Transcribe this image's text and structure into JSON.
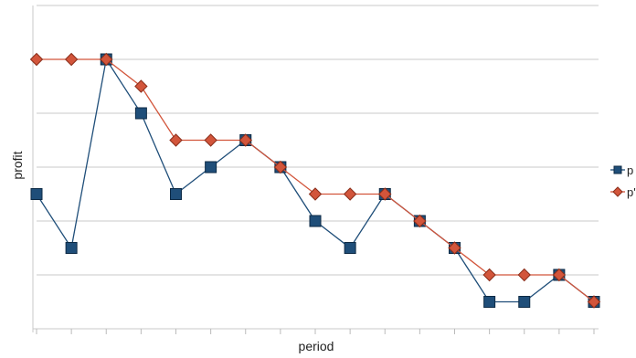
{
  "chart_data": {
    "type": "line",
    "title": "",
    "xlabel": "period",
    "ylabel": "profit",
    "x": [
      1,
      2,
      3,
      4,
      5,
      6,
      7,
      8,
      9,
      10,
      11,
      12,
      13,
      14,
      15,
      16,
      17
    ],
    "ylim": [
      0,
      6
    ],
    "grid": true,
    "legend_position": "right",
    "series": [
      {
        "name": "p",
        "color": "#1f4e79",
        "marker": "square",
        "values": [
          2.5,
          1.5,
          5.0,
          4.0,
          2.5,
          3.0,
          3.5,
          3.0,
          2.0,
          1.5,
          2.5,
          2.0,
          1.5,
          0.5,
          0.5,
          1.0,
          0.5
        ]
      },
      {
        "name": "p'",
        "color": "#d2553b",
        "marker": "diamond",
        "values": [
          5.0,
          5.0,
          5.0,
          4.5,
          3.5,
          3.5,
          3.5,
          3.0,
          2.5,
          2.5,
          2.5,
          2.0,
          1.5,
          1.0,
          1.0,
          1.0,
          0.5
        ]
      }
    ]
  }
}
